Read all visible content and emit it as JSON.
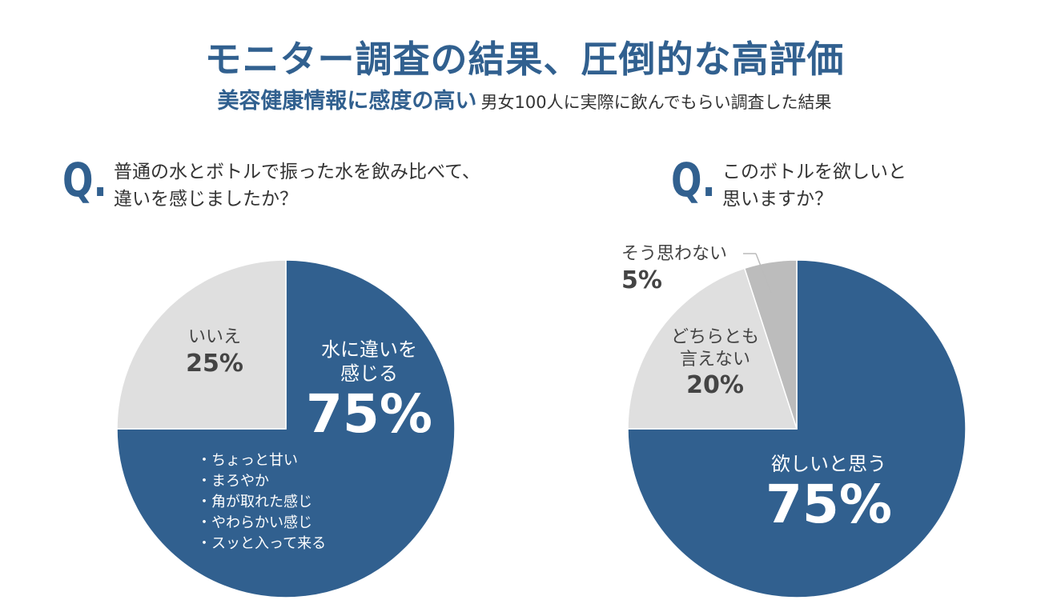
{
  "header": {
    "title": "モニター調査の結果、圧倒的な高評価",
    "subtitle_highlight": "美容健康情報に感度の高い",
    "subtitle_rest": "男女100人に実際に飲んでもらい調査した結果"
  },
  "question_mark": "Q.",
  "colors": {
    "primary": "#31608f",
    "light": "#dfdfdf",
    "mid": "#bcbcbc",
    "divider": "#ffffff"
  },
  "chart_data": [
    {
      "type": "pie",
      "question_lines": [
        "普通の水とボトルで振った水を飲み比べて、",
        "違いを感じましたか？"
      ],
      "slices": [
        {
          "label_lines": [
            "水に違いを",
            "感じる"
          ],
          "value": 75,
          "value_label": "75%",
          "color": "#31608f"
        },
        {
          "label_lines": [
            "いいえ"
          ],
          "value": 25,
          "value_label": "25%",
          "color": "#dfdfdf"
        }
      ],
      "notes": [
        "ちょっと甘い",
        "まろやか",
        "角が取れた感じ",
        "やわらかい感じ",
        "スッと入って来る"
      ]
    },
    {
      "type": "pie",
      "question_lines": [
        "このボトルを欲しいと",
        "思いますか？"
      ],
      "slices": [
        {
          "label_lines": [
            "欲しいと思う"
          ],
          "value": 75,
          "value_label": "75%",
          "color": "#31608f"
        },
        {
          "label_lines": [
            "どちらとも",
            "言えない"
          ],
          "value": 20,
          "value_label": "20%",
          "color": "#dfdfdf"
        },
        {
          "label_lines": [
            "そう思わない"
          ],
          "value": 5,
          "value_label": "5%",
          "color": "#bcbcbc"
        }
      ]
    }
  ]
}
